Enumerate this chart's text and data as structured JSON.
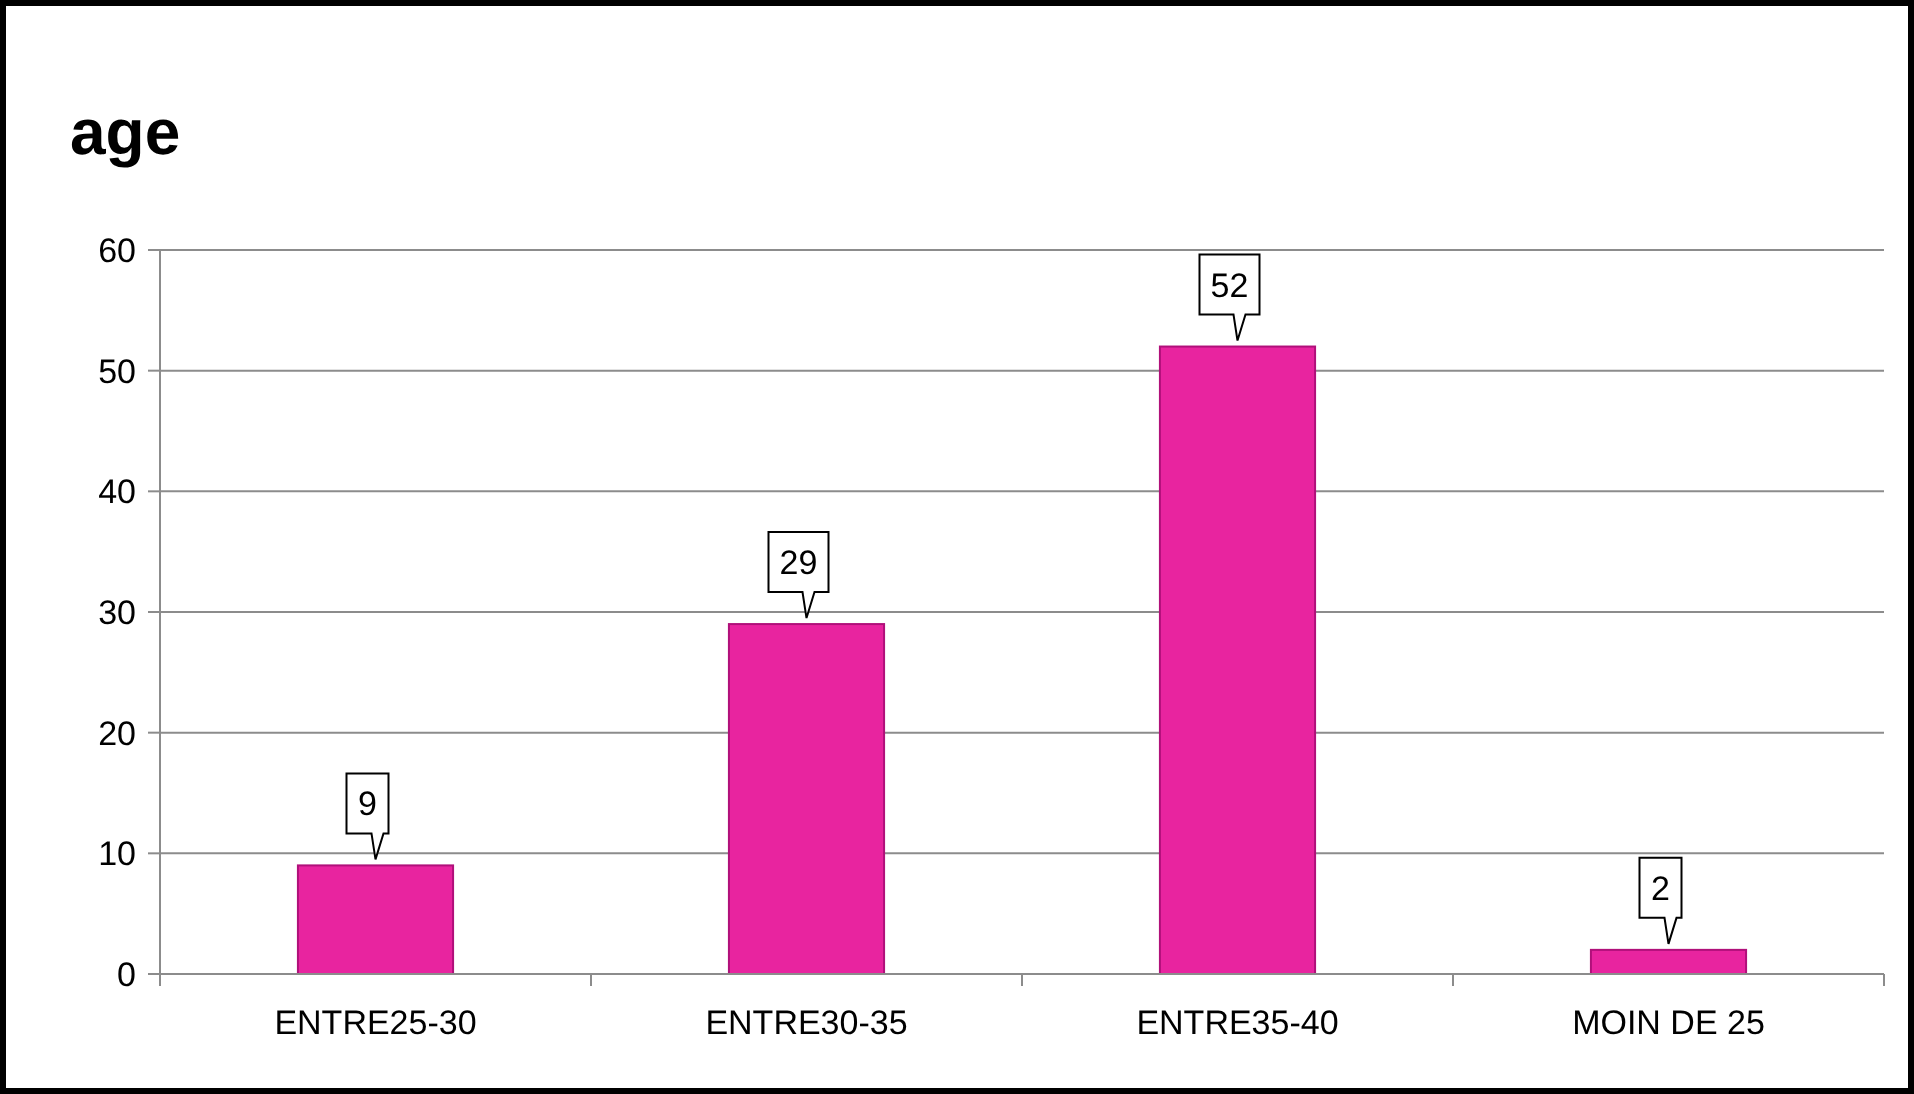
{
  "chart_data": {
    "type": "bar",
    "title": "age",
    "categories": [
      "ENTRE25-30",
      "ENTRE30-35",
      "ENTRE35-40",
      "MOIN DE 25"
    ],
    "values": [
      9,
      29,
      52,
      2
    ],
    "color": "#e8249f",
    "ylim": [
      0,
      60
    ],
    "yticks": [
      0,
      10,
      20,
      30,
      40,
      50,
      60
    ],
    "grid": "y",
    "data_labels": true
  }
}
